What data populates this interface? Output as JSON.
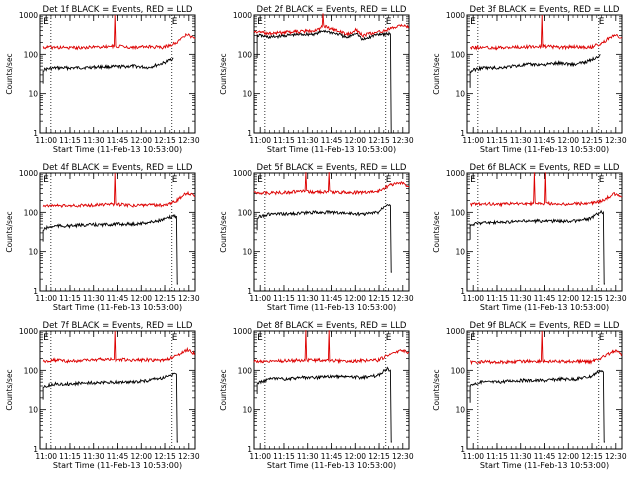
{
  "chart_data": [
    {
      "type": "line",
      "title": "Det 1f BLACK = Events, RED = LLD",
      "xlabel": "Start Time (11-Feb-13 10:53:00)",
      "ylabel": "Counts/sec",
      "scale_y": "log",
      "ylim": [
        1,
        1000
      ],
      "xlim": [
        0,
        100
      ],
      "xticks": [
        "11:00",
        "11:15",
        "11:30",
        "11:45",
        "12:00",
        "12:15",
        "12:30"
      ],
      "yticks": [
        "1",
        "10",
        "100",
        "1000"
      ],
      "dotted_lines_x": [
        7,
        85
      ],
      "markers": [
        {
          "label": "E",
          "x": 2
        },
        {
          "label": "E",
          "x": 85
        }
      ],
      "series": [
        {
          "name": "BLACK = Events",
          "color": "#000000",
          "x": [
            2,
            2,
            4,
            10,
            20,
            30,
            40,
            50,
            60,
            70,
            80,
            86
          ],
          "y": [
            18,
            40,
            42,
            45,
            45,
            46,
            48,
            48,
            50,
            46,
            60,
            80
          ]
        },
        {
          "name": "RED = LLD",
          "color": "#dd0000",
          "x": [
            2,
            10,
            20,
            30,
            40,
            48,
            48.5,
            49,
            60,
            70,
            80,
            88,
            95,
            100
          ],
          "y": [
            150,
            150,
            145,
            150,
            155,
            160,
            1000,
            160,
            150,
            155,
            150,
            200,
            330,
            250
          ]
        }
      ]
    },
    {
      "type": "line",
      "title": "Det 2f BLACK = Events, RED = LLD",
      "xlabel": "Start Time (11-Feb-13 10:53:00)",
      "ylabel": "Counts/sec",
      "scale_y": "log",
      "ylim": [
        1,
        1000
      ],
      "xlim": [
        0,
        100
      ],
      "xticks": [
        "11:00",
        "11:15",
        "11:30",
        "11:45",
        "12:00",
        "12:15",
        "12:30"
      ],
      "yticks": [
        "1",
        "10",
        "100",
        "1000"
      ],
      "dotted_lines_x": [
        7,
        85
      ],
      "markers": [
        {
          "label": "E",
          "x": 2
        },
        {
          "label": "E",
          "x": 85
        }
      ],
      "series": [
        {
          "name": "BLACK = Events",
          "color": "#000000",
          "x": [
            2,
            2,
            4,
            10,
            20,
            30,
            40,
            45,
            55,
            60,
            66,
            70,
            80,
            88,
            88.5,
            89
          ],
          "y": [
            80,
            300,
            300,
            270,
            300,
            320,
            330,
            400,
            320,
            260,
            360,
            230,
            330,
            330,
            1,
            1
          ]
        },
        {
          "name": "RED = LLD",
          "color": "#dd0000",
          "x": [
            0,
            10,
            20,
            30,
            40,
            44,
            44.5,
            45,
            55,
            60,
            66,
            70,
            80,
            88,
            95,
            100
          ],
          "y": [
            380,
            340,
            360,
            380,
            400,
            500,
            1100,
            520,
            380,
            320,
            420,
            300,
            370,
            440,
            560,
            480
          ]
        }
      ]
    },
    {
      "type": "line",
      "title": "Det 3f BLACK = Events, RED = LLD",
      "xlabel": "Start Time (11-Feb-13 10:53:00)",
      "ylabel": "Counts/sec",
      "scale_y": "log",
      "ylim": [
        1,
        1000
      ],
      "xlim": [
        0,
        100
      ],
      "xticks": [
        "11:00",
        "11:15",
        "11:30",
        "11:45",
        "12:00",
        "12:15",
        "12:30"
      ],
      "yticks": [
        "1",
        "10",
        "100",
        "1000"
      ],
      "dotted_lines_x": [
        7,
        85
      ],
      "markers": [
        {
          "label": "E",
          "x": 2
        },
        {
          "label": "E",
          "x": 85
        }
      ],
      "series": [
        {
          "name": "BLACK = Events",
          "color": "#000000",
          "x": [
            2,
            2,
            4,
            10,
            20,
            30,
            40,
            50,
            60,
            70,
            80,
            86
          ],
          "y": [
            14,
            35,
            40,
            45,
            45,
            50,
            55,
            55,
            60,
            55,
            70,
            100
          ]
        },
        {
          "name": "RED = LLD",
          "color": "#dd0000",
          "x": [
            2,
            10,
            20,
            30,
            40,
            48,
            48.5,
            49,
            60,
            70,
            80,
            88,
            95,
            100
          ],
          "y": [
            150,
            150,
            145,
            150,
            155,
            160,
            1000,
            160,
            150,
            155,
            150,
            200,
            320,
            260
          ]
        }
      ]
    },
    {
      "type": "line",
      "title": "Det 4f BLACK = Events, RED = LLD",
      "xlabel": "Start Time (11-Feb-13 10:53:00)",
      "ylabel": "Counts/sec",
      "scale_y": "log",
      "ylim": [
        1,
        1000
      ],
      "xlim": [
        0,
        100
      ],
      "xticks": [
        "11:00",
        "11:15",
        "11:30",
        "11:45",
        "12:00",
        "12:15",
        "12:30"
      ],
      "yticks": [
        "1",
        "10",
        "100",
        "1000"
      ],
      "dotted_lines_x": [
        7,
        85
      ],
      "markers": [
        {
          "label": "E",
          "x": 2
        },
        {
          "label": "E",
          "x": 85
        }
      ],
      "series": [
        {
          "name": "BLACK = Events",
          "color": "#000000",
          "x": [
            2,
            2,
            4,
            10,
            20,
            30,
            40,
            50,
            60,
            70,
            80,
            86,
            88,
            88.5,
            89
          ],
          "y": [
            18,
            35,
            40,
            45,
            45,
            48,
            48,
            50,
            50,
            55,
            65,
            80,
            80,
            1.5,
            1.5
          ]
        },
        {
          "name": "RED = LLD",
          "color": "#dd0000",
          "x": [
            2,
            10,
            20,
            30,
            40,
            48,
            48.5,
            49,
            60,
            70,
            80,
            88,
            95,
            100
          ],
          "y": [
            150,
            150,
            145,
            150,
            155,
            160,
            1000,
            160,
            150,
            155,
            150,
            200,
            320,
            250
          ]
        }
      ]
    },
    {
      "type": "line",
      "title": "Det 5f BLACK = Events, RED = LLD",
      "xlabel": "Start Time (11-Feb-13 10:53:00)",
      "ylabel": "Counts/sec",
      "scale_y": "log",
      "ylim": [
        1,
        1000
      ],
      "xlim": [
        0,
        100
      ],
      "xticks": [
        "11:00",
        "11:15",
        "11:30",
        "11:45",
        "12:00",
        "12:15",
        "12:30"
      ],
      "yticks": [
        "1",
        "10",
        "100",
        "1000"
      ],
      "dotted_lines_x": [
        7,
        85
      ],
      "markers": [
        {
          "label": "E",
          "x": 2
        },
        {
          "label": "E",
          "x": 85
        }
      ],
      "series": [
        {
          "name": "BLACK = Events",
          "color": "#000000",
          "x": [
            2,
            2,
            4,
            10,
            20,
            30,
            40,
            50,
            60,
            70,
            80,
            86,
            88,
            88.5,
            89
          ],
          "y": [
            35,
            70,
            80,
            90,
            90,
            95,
            100,
            100,
            95,
            90,
            100,
            170,
            150,
            3,
            3
          ]
        },
        {
          "name": "RED = LLD",
          "color": "#dd0000",
          "x": [
            0,
            10,
            20,
            30,
            33,
            33.5,
            34,
            40,
            48,
            48.5,
            49,
            60,
            70,
            80,
            88,
            95,
            100
          ],
          "y": [
            320,
            310,
            320,
            340,
            340,
            1050,
            330,
            330,
            330,
            1050,
            330,
            320,
            320,
            340,
            500,
            560,
            450
          ]
        }
      ]
    },
    {
      "type": "line",
      "title": "Det 6f BLACK = Events, RED = LLD",
      "xlabel": "Start Time (11-Feb-13 10:53:00)",
      "ylabel": "Counts/sec",
      "scale_y": "log",
      "ylim": [
        1,
        1000
      ],
      "xlim": [
        0,
        100
      ],
      "xticks": [
        "11:00",
        "11:15",
        "11:30",
        "11:45",
        "12:00",
        "12:15",
        "12:30"
      ],
      "yticks": [
        "1",
        "10",
        "100",
        "1000"
      ],
      "dotted_lines_x": [
        7,
        85
      ],
      "markers": [
        {
          "label": "E",
          "x": 2
        },
        {
          "label": "E",
          "x": 85
        }
      ],
      "series": [
        {
          "name": "BLACK = Events",
          "color": "#000000",
          "x": [
            2,
            2,
            4,
            10,
            20,
            30,
            40,
            50,
            60,
            70,
            80,
            86,
            88,
            88.5,
            89
          ],
          "y": [
            20,
            45,
            50,
            55,
            55,
            58,
            60,
            60,
            60,
            60,
            70,
            100,
            100,
            1.5,
            1.5
          ]
        },
        {
          "name": "RED = LLD",
          "color": "#dd0000",
          "x": [
            2,
            10,
            20,
            30,
            40,
            43,
            43.5,
            44,
            50,
            50.5,
            51,
            60,
            70,
            80,
            88,
            95,
            100
          ],
          "y": [
            160,
            165,
            160,
            165,
            170,
            170,
            1050,
            170,
            170,
            1050,
            170,
            160,
            165,
            170,
            200,
            300,
            250
          ]
        }
      ]
    },
    {
      "type": "line",
      "title": "Det 7f BLACK = Events, RED = LLD",
      "xlabel": "Start Time (11-Feb-13 10:53:00)",
      "ylabel": "Counts/sec",
      "scale_y": "log",
      "ylim": [
        1,
        1000
      ],
      "xlim": [
        0,
        100
      ],
      "xticks": [
        "11:00",
        "11:15",
        "11:30",
        "11:45",
        "12:00",
        "12:15",
        "12:30"
      ],
      "yticks": [
        "1",
        "10",
        "100",
        "1000"
      ],
      "dotted_lines_x": [
        7,
        85
      ],
      "markers": [
        {
          "label": "E",
          "x": 2
        },
        {
          "label": "E",
          "x": 85
        }
      ],
      "series": [
        {
          "name": "BLACK = Events",
          "color": "#000000",
          "x": [
            2,
            2,
            4,
            10,
            20,
            30,
            40,
            50,
            60,
            70,
            80,
            86,
            88,
            88.5,
            89
          ],
          "y": [
            18,
            35,
            40,
            45,
            45,
            48,
            48,
            50,
            50,
            55,
            65,
            80,
            80,
            1.5,
            1.5
          ]
        },
        {
          "name": "RED = LLD",
          "color": "#dd0000",
          "x": [
            2,
            10,
            20,
            30,
            40,
            48,
            48.5,
            49,
            60,
            70,
            80,
            88,
            95,
            100
          ],
          "y": [
            170,
            180,
            170,
            180,
            190,
            190,
            1000,
            190,
            180,
            185,
            180,
            230,
            330,
            260
          ]
        }
      ]
    },
    {
      "type": "line",
      "title": "Det 8f BLACK = Events, RED = LLD",
      "xlabel": "Start Time (11-Feb-13 10:53:00)",
      "ylabel": "Counts/sec",
      "scale_y": "log",
      "ylim": [
        1,
        1000
      ],
      "xlim": [
        0,
        100
      ],
      "xticks": [
        "11:00",
        "11:15",
        "11:30",
        "11:45",
        "12:00",
        "12:15",
        "12:30"
      ],
      "yticks": [
        "1",
        "10",
        "100",
        "1000"
      ],
      "dotted_lines_x": [
        7,
        85
      ],
      "markers": [
        {
          "label": "E",
          "x": 2
        },
        {
          "label": "E",
          "x": 85
        }
      ],
      "series": [
        {
          "name": "BLACK = Events",
          "color": "#000000",
          "x": [
            2,
            2,
            4,
            10,
            20,
            30,
            40,
            50,
            60,
            70,
            80,
            86,
            88,
            88.5,
            89
          ],
          "y": [
            25,
            45,
            50,
            60,
            60,
            65,
            65,
            70,
            70,
            65,
            75,
            110,
            100,
            1.5,
            1.5
          ]
        },
        {
          "name": "RED = LLD",
          "color": "#dd0000",
          "x": [
            0,
            10,
            20,
            30,
            33,
            33.5,
            34,
            40,
            48,
            48.5,
            49,
            60,
            70,
            80,
            88,
            95,
            100
          ],
          "y": [
            170,
            170,
            175,
            180,
            180,
            1050,
            180,
            180,
            180,
            1050,
            180,
            170,
            175,
            180,
            260,
            330,
            280
          ]
        }
      ]
    },
    {
      "type": "line",
      "title": "Det 9f BLACK = Events, RED = LLD",
      "xlabel": "Start Time (11-Feb-13 10:53:00)",
      "ylabel": "Counts/sec",
      "scale_y": "log",
      "ylim": [
        1,
        1000
      ],
      "xlim": [
        0,
        100
      ],
      "xticks": [
        "11:00",
        "11:15",
        "11:30",
        "11:45",
        "12:00",
        "12:15",
        "12:30"
      ],
      "yticks": [
        "1",
        "10",
        "100",
        "1000"
      ],
      "dotted_lines_x": [
        7,
        85
      ],
      "markers": [
        {
          "label": "E",
          "x": 2
        },
        {
          "label": "E",
          "x": 85
        }
      ],
      "series": [
        {
          "name": "BLACK = Events",
          "color": "#000000",
          "x": [
            2,
            2,
            4,
            10,
            20,
            30,
            40,
            50,
            60,
            70,
            80,
            86,
            88,
            88.5,
            89
          ],
          "y": [
            15,
            40,
            45,
            50,
            50,
            55,
            55,
            55,
            60,
            60,
            70,
            100,
            90,
            1.5,
            1.5
          ]
        },
        {
          "name": "RED = LLD",
          "color": "#dd0000",
          "x": [
            2,
            10,
            20,
            30,
            40,
            48,
            48.5,
            49,
            60,
            70,
            80,
            88,
            95,
            100
          ],
          "y": [
            160,
            165,
            160,
            165,
            170,
            170,
            1000,
            170,
            165,
            170,
            165,
            220,
            320,
            250
          ]
        }
      ]
    }
  ]
}
